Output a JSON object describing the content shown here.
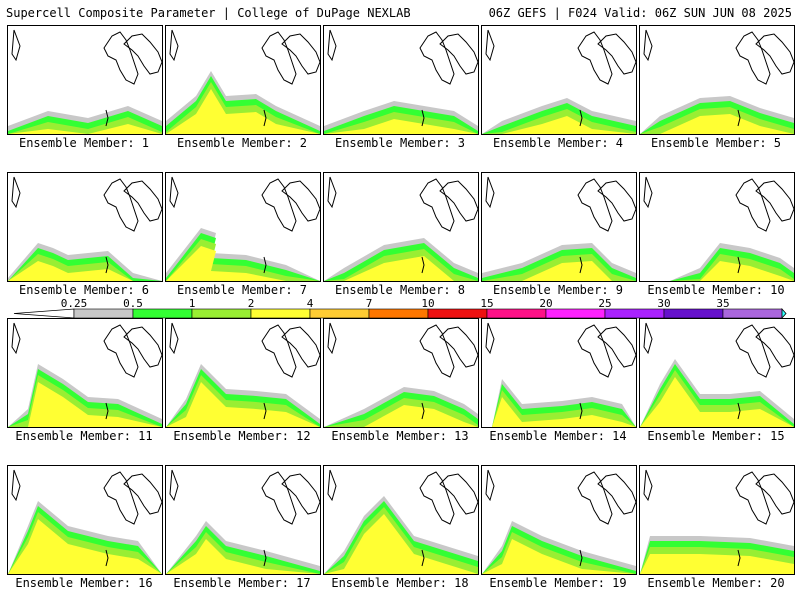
{
  "header": {
    "title_left": "Supercell Composite Parameter | College of DuPage NEXLAB",
    "title_right": "06Z GEFS | F024 Valid: 06Z SUN JUN 08 2025"
  },
  "colors": {
    "map_background": "#ffffff",
    "map_outline": "#000000",
    "level_0_25": "#c8c8c8",
    "level_0_5": "#33ff33",
    "level_1": "#99ee33",
    "level_2": "#ffff33",
    "level_4": "#ffcc33",
    "level_7": "#ff7700",
    "level_10": "#ee1111",
    "level_15": "#ff1188",
    "level_20": "#ff22ff",
    "level_25": "#aa22ff",
    "level_30": "#6611cc",
    "level_35": "#aa66dd",
    "level_over": "#33ffff"
  },
  "colorbar": {
    "levels": [
      "0.25",
      "0.5",
      "1",
      "2",
      "4",
      "7",
      "10",
      "15",
      "20",
      "25",
      "30",
      "35"
    ],
    "segment_colors": [
      "#c8c8c8",
      "#33ff33",
      "#99ee33",
      "#ffff33",
      "#ffcc33",
      "#ff7700",
      "#ee1111",
      "#ff1188",
      "#ff22ff",
      "#aa22ff",
      "#6611cc",
      "#aa66dd",
      "#33ffff"
    ]
  },
  "members": [
    {
      "label": "Ensemble Member: 1"
    },
    {
      "label": "Ensemble Member: 2"
    },
    {
      "label": "Ensemble Member: 3"
    },
    {
      "label": "Ensemble Member: 4"
    },
    {
      "label": "Ensemble Member: 5"
    },
    {
      "label": "Ensemble Member: 6"
    },
    {
      "label": "Ensemble Member: 7"
    },
    {
      "label": "Ensemble Member: 8"
    },
    {
      "label": "Ensemble Member: 9"
    },
    {
      "label": "Ensemble Member: 10"
    },
    {
      "label": "Ensemble Member: 11"
    },
    {
      "label": "Ensemble Member: 12"
    },
    {
      "label": "Ensemble Member: 13"
    },
    {
      "label": "Ensemble Member: 14"
    },
    {
      "label": "Ensemble Member: 15"
    },
    {
      "label": "Ensemble Member: 16"
    },
    {
      "label": "Ensemble Member: 17"
    },
    {
      "label": "Ensemble Member: 18"
    },
    {
      "label": "Ensemble Member: 19"
    },
    {
      "label": "Ensemble Member: 20"
    }
  ]
}
